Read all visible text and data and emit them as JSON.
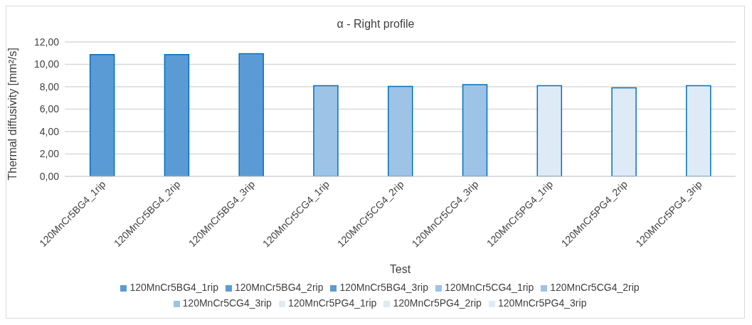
{
  "chart_data": {
    "type": "bar",
    "title": "α - Right profile",
    "xlabel": "Test",
    "ylabel": "Thermal diffusivity [mm²/s]",
    "categories": [
      "120MnCr5BG4_1rip",
      "120MnCr5BG4_2rip",
      "120MnCr5BG4_3rip",
      "120MnCr5CG4_1rip",
      "120MnCr5CG4_2rip",
      "120MnCr5CG4_3rip",
      "120MnCr5PG4_1rip",
      "120MnCr5PG4_2rip",
      "120MnCr5PG4_3rip"
    ],
    "series": [
      {
        "name": "120MnCr5BG4_1rip",
        "color": "#5b9bd5",
        "values": [
          10.88,
          null,
          null,
          null,
          null,
          null,
          null,
          null,
          null
        ]
      },
      {
        "name": "120MnCr5BG4_2rip",
        "color": "#5b9bd5",
        "values": [
          null,
          10.88,
          null,
          null,
          null,
          null,
          null,
          null,
          null
        ]
      },
      {
        "name": "120MnCr5BG4_3rip",
        "color": "#5b9bd5",
        "values": [
          null,
          null,
          10.96,
          null,
          null,
          null,
          null,
          null,
          null
        ]
      },
      {
        "name": "120MnCr5CG4_1rip",
        "color": "#9dc3e6",
        "values": [
          null,
          null,
          null,
          8.09,
          null,
          null,
          null,
          null,
          null
        ]
      },
      {
        "name": "120MnCr5CG4_2rip",
        "color": "#9dc3e6",
        "values": [
          null,
          null,
          null,
          null,
          8.03,
          null,
          null,
          null,
          null
        ]
      },
      {
        "name": "120MnCr5CG4_3rip",
        "color": "#9dc3e6",
        "values": [
          null,
          null,
          null,
          null,
          null,
          8.19,
          null,
          null,
          null
        ]
      },
      {
        "name": "120MnCr5PG4_1rip",
        "color": "#deebf7",
        "values": [
          null,
          null,
          null,
          null,
          null,
          null,
          8.09,
          null,
          null
        ]
      },
      {
        "name": "120MnCr5PG4_2rip",
        "color": "#deebf7",
        "values": [
          null,
          null,
          null,
          null,
          null,
          null,
          null,
          7.91,
          null
        ]
      },
      {
        "name": "120MnCr5PG4_3rip",
        "color": "#deebf7",
        "values": [
          null,
          null,
          null,
          null,
          null,
          null,
          null,
          null,
          8.09
        ]
      }
    ],
    "stacked": true,
    "ylim": [
      0,
      12
    ],
    "yticks": [
      {
        "value": 0,
        "label": "0,00"
      },
      {
        "value": 2,
        "label": "2,00"
      },
      {
        "value": 4,
        "label": "4,00"
      },
      {
        "value": 6,
        "label": "6,00"
      },
      {
        "value": 8,
        "label": "8,00"
      },
      {
        "value": 10,
        "label": "10,00"
      },
      {
        "value": 12,
        "label": "12,00"
      }
    ],
    "grid": "y",
    "legend": "bottom"
  }
}
